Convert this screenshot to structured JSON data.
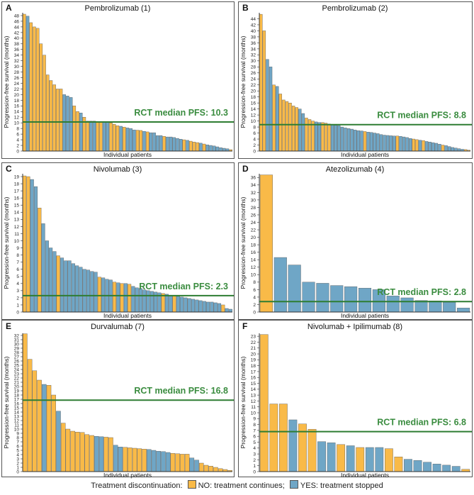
{
  "colors": {
    "no": "#F9BA48",
    "yes": "#6FA6C6",
    "rct_line": "#2E7D32",
    "rct_text": "#3A8C3F"
  },
  "labels": {
    "ylabel": "Progression-free survival (months)",
    "xlabel": "Individual patients",
    "rct_prefix": "RCT median PFS:"
  },
  "legend": {
    "title": "Treatment discontinuation:",
    "no_label": "NO: treatment continues;",
    "yes_label": "YES: treatment stopped"
  },
  "chart_data": [
    {
      "type": "bar",
      "panel": "A",
      "title": "Pembrolizumab (1)",
      "rct_median": 10.3,
      "rct_label": "RCT median PFS: 10.3",
      "ylim": [
        0,
        49
      ],
      "yticks": [
        0,
        2,
        4,
        6,
        8,
        10,
        12,
        14,
        16,
        18,
        20,
        22,
        24,
        26,
        28,
        30,
        32,
        34,
        36,
        38,
        40,
        42,
        44,
        46,
        48
      ],
      "values": [
        48.5,
        47.8,
        45.5,
        44,
        43.5,
        38,
        34,
        27,
        25,
        23.5,
        22,
        22,
        20,
        19.5,
        19,
        16,
        14,
        13.5,
        12,
        10.6,
        10.6,
        10.6,
        10.5,
        10.5,
        10.5,
        10.4,
        10,
        9.5,
        9,
        8.8,
        8.5,
        8.2,
        8,
        7.5,
        7.4,
        7.3,
        7,
        6.8,
        6.5,
        6.5,
        5.5,
        5.5,
        5.2,
        5,
        5,
        4.8,
        4.5,
        4.2,
        4,
        3.8,
        3.5,
        3.2,
        3,
        2.8,
        2.5,
        2.2,
        2,
        1.8,
        1.5,
        1.2,
        1,
        0.8,
        0.5
      ],
      "stopped": [
        0,
        1,
        0,
        0,
        0,
        0,
        0,
        0,
        0,
        0,
        0,
        0,
        1,
        1,
        1,
        0,
        0,
        1,
        0,
        0,
        1,
        1,
        0,
        0,
        1,
        1,
        0,
        0,
        0,
        1,
        0,
        1,
        1,
        1,
        0,
        0,
        1,
        0,
        1,
        1,
        1,
        1,
        0,
        1,
        1,
        1,
        1,
        1,
        0,
        1,
        0,
        0,
        0,
        1,
        0,
        1,
        1,
        1,
        1,
        1,
        1,
        1,
        0
      ]
    },
    {
      "type": "bar",
      "panel": "B",
      "title": "Pembrolizumab (2)",
      "rct_median": 8.8,
      "rct_label": "RCT median PFS: 8.8",
      "ylim": [
        0,
        46
      ],
      "yticks": [
        0,
        2,
        4,
        6,
        8,
        10,
        12,
        14,
        16,
        18,
        20,
        22,
        24,
        26,
        28,
        30,
        32,
        34,
        36,
        38,
        40,
        42,
        44
      ],
      "values": [
        45.5,
        40,
        30.5,
        28,
        22,
        21.5,
        19,
        17,
        16.5,
        16,
        15,
        14.5,
        14,
        12.5,
        11,
        10.5,
        10,
        9.7,
        9.5,
        9.5,
        9.3,
        9,
        8.8,
        8.6,
        8.5,
        8,
        7.7,
        7.5,
        7.3,
        7,
        6.8,
        6.7,
        6.5,
        6.3,
        6.2,
        6,
        5.8,
        5.5,
        5.3,
        5.2,
        5.1,
        5,
        5,
        4.9,
        4.7,
        4.5,
        4.2,
        4,
        3.8,
        3.6,
        3.5,
        3.2,
        3,
        2.8,
        2.6,
        2.3,
        2,
        1.8,
        1.5,
        1.2,
        1,
        0.8,
        0.6,
        0.5,
        0.3
      ],
      "stopped": [
        0,
        0,
        1,
        1,
        0,
        1,
        0,
        0,
        0,
        0,
        0,
        0,
        1,
        1,
        0,
        0,
        0,
        1,
        1,
        0,
        0,
        0,
        1,
        1,
        1,
        1,
        1,
        1,
        1,
        1,
        1,
        1,
        0,
        1,
        1,
        1,
        1,
        1,
        1,
        1,
        1,
        1,
        0,
        1,
        1,
        1,
        1,
        0,
        0,
        1,
        0,
        1,
        1,
        1,
        1,
        1,
        0,
        1,
        1,
        1,
        1,
        1,
        1,
        0,
        0
      ]
    },
    {
      "type": "bar",
      "panel": "C",
      "title": "Nivolumab (3)",
      "rct_median": 2.3,
      "rct_label": "RCT median PFS: 2.3",
      "ylim": [
        0,
        19.4
      ],
      "yticks": [
        0,
        1,
        2,
        3,
        4,
        5,
        6,
        7,
        8,
        9,
        10,
        11,
        12,
        13,
        14,
        15,
        16,
        17,
        18,
        19
      ],
      "values": [
        19.1,
        19,
        18.6,
        17.6,
        14.6,
        12.4,
        10,
        9,
        8.5,
        7.9,
        7.6,
        7.2,
        7.2,
        6.8,
        6.5,
        6.3,
        6,
        5.9,
        5.7,
        5.6,
        4.9,
        4.8,
        4.6,
        4.5,
        4.2,
        4.1,
        4,
        4,
        3.9,
        3.6,
        3.4,
        3.3,
        3.1,
        3,
        2.9,
        2.8,
        2.7,
        2.6,
        2.5,
        2.3,
        2.3,
        2.2,
        2.1,
        2,
        1.9,
        1.8,
        1.7,
        1.6,
        1.5,
        1.4,
        1.4,
        1.3,
        1.2,
        1,
        0.5,
        0.4
      ],
      "stopped": [
        0,
        0,
        1,
        1,
        0,
        1,
        1,
        1,
        1,
        0,
        1,
        1,
        1,
        1,
        1,
        1,
        1,
        1,
        1,
        1,
        0,
        1,
        1,
        1,
        0,
        1,
        0,
        1,
        0,
        1,
        1,
        1,
        1,
        1,
        1,
        1,
        1,
        0,
        1,
        1,
        0,
        1,
        1,
        1,
        1,
        1,
        1,
        1,
        1,
        1,
        1,
        1,
        1,
        0,
        1,
        1
      ]
    },
    {
      "type": "bar",
      "panel": "D",
      "title": "Atezolizumab (4)",
      "rct_median": 2.8,
      "rct_label": "RCT median PFS: 2.8",
      "ylim": [
        0,
        37
      ],
      "yticks": [
        0,
        2,
        4,
        6,
        8,
        10,
        12,
        14,
        16,
        18,
        20,
        22,
        24,
        26,
        28,
        30,
        32,
        34,
        36
      ],
      "values": [
        36.7,
        14.6,
        12.6,
        8,
        7.7,
        7.1,
        6.8,
        6.4,
        6,
        4.3,
        3.8,
        3.1,
        3,
        2.6,
        1.1
      ],
      "stopped": [
        0,
        1,
        1,
        1,
        1,
        1,
        1,
        1,
        1,
        1,
        1,
        1,
        1,
        1,
        1
      ]
    },
    {
      "type": "bar",
      "panel": "E",
      "title": "Durvalumab (7)",
      "rct_median": 16.8,
      "rct_label": "RCT median PFS: 16.8",
      "ylim": [
        0,
        32.5
      ],
      "yticks": [
        0,
        1,
        2,
        3,
        4,
        5,
        6,
        7,
        8,
        9,
        10,
        11,
        12,
        13,
        14,
        15,
        16,
        17,
        18,
        19,
        20,
        21,
        22,
        23,
        24,
        25,
        26,
        27,
        28,
        29,
        30,
        31,
        32
      ],
      "values": [
        32.4,
        26.4,
        23.7,
        21.5,
        20.5,
        20.3,
        18,
        14.2,
        11.4,
        10,
        9.5,
        9.3,
        9.2,
        8.7,
        8.5,
        8.3,
        8.2,
        8.1,
        8,
        6.2,
        5.8,
        5.7,
        5.6,
        5.5,
        5.4,
        5.3,
        5.2,
        5,
        4.8,
        4.7,
        4.5,
        4.3,
        4.2,
        4.1,
        4.1,
        3.2,
        2.7,
        2,
        1.5,
        1.3,
        1,
        0.7,
        0.5,
        0.3
      ],
      "stopped": [
        0,
        0,
        0,
        0,
        1,
        0,
        0,
        1,
        0,
        0,
        0,
        0,
        0,
        0,
        0,
        1,
        1,
        0,
        0,
        1,
        1,
        0,
        0,
        0,
        0,
        0,
        1,
        1,
        1,
        1,
        1,
        0,
        0,
        0,
        0,
        1,
        1,
        0,
        0,
        0,
        0,
        0,
        0,
        0
      ]
    },
    {
      "type": "bar",
      "panel": "F",
      "title": "Nivolumab + Ipilimumab (8)",
      "rct_median": 6.8,
      "rct_label": "RCT median PFS: 6.8",
      "ylim": [
        0,
        23.5
      ],
      "yticks": [
        0,
        1,
        2,
        3,
        4,
        5,
        6,
        7,
        8,
        9,
        10,
        11,
        12,
        13,
        14,
        15,
        16,
        17,
        18,
        19,
        20,
        21,
        22,
        23
      ],
      "values": [
        23.3,
        11.5,
        11.5,
        8.8,
        8.1,
        7.2,
        5.1,
        4.9,
        4.6,
        4.4,
        4.1,
        4.1,
        4.1,
        3.9,
        2.5,
        2.1,
        1.9,
        1.6,
        1.3,
        1.1,
        0.9,
        0.4
      ],
      "stopped": [
        0,
        0,
        0,
        1,
        0,
        0,
        1,
        1,
        0,
        1,
        0,
        1,
        1,
        0,
        0,
        1,
        1,
        1,
        1,
        1,
        1,
        0
      ]
    }
  ]
}
